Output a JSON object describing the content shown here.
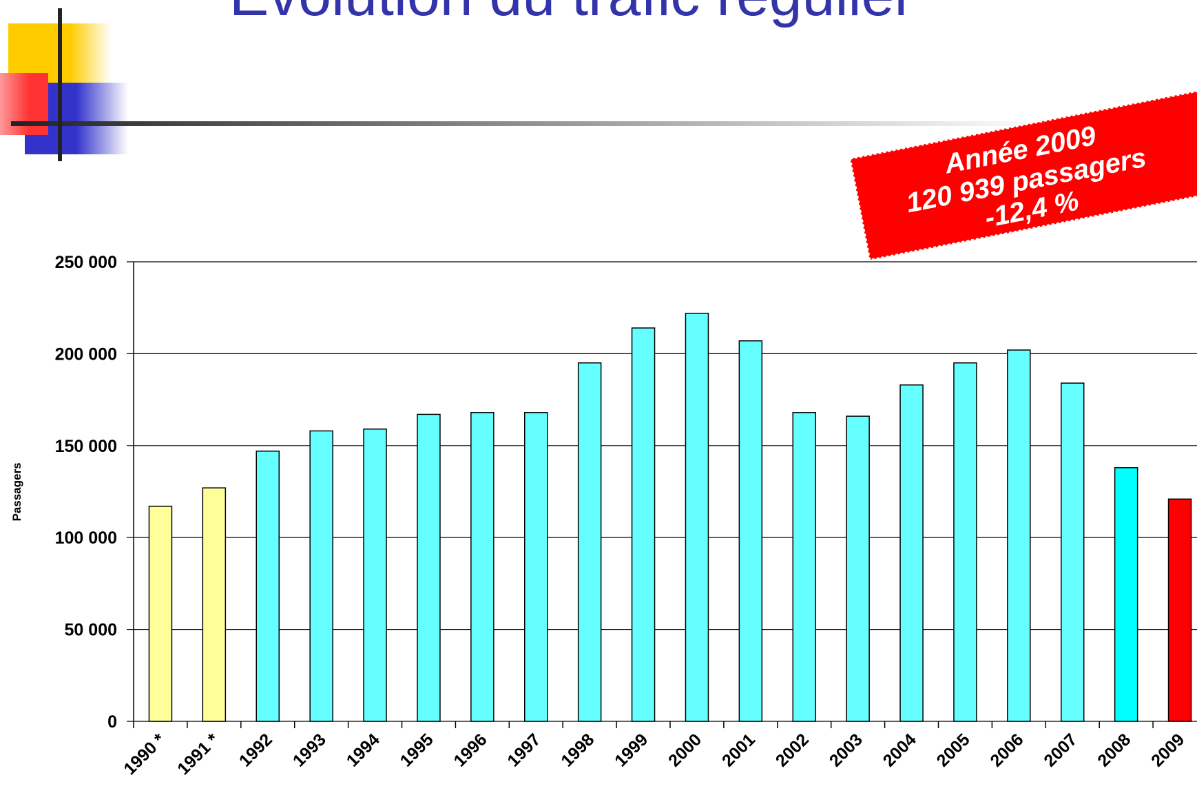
{
  "chart_data": {
    "type": "bar",
    "title": "Évolution du trafic régulier",
    "y_label": "Passagers",
    "annotation": [
      "Année 2009",
      "120 939 passagers",
      "-12,4 %"
    ],
    "categories": [
      "1990 *",
      "1991 *",
      "1992",
      "1993",
      "1994",
      "1995",
      "1996",
      "1997",
      "1998",
      "1999",
      "2000",
      "2001",
      "2002",
      "2003",
      "2004",
      "2005",
      "2006",
      "2007",
      "2008",
      "2009"
    ],
    "values": [
      117000,
      127000,
      147000,
      158000,
      159000,
      167000,
      168000,
      168000,
      195000,
      214000,
      222000,
      207000,
      168000,
      166000,
      183000,
      195000,
      202000,
      184000,
      138000,
      120939
    ],
    "colors": [
      "#ffff99",
      "#ffff99",
      "#66ffff",
      "#66ffff",
      "#66ffff",
      "#66ffff",
      "#66ffff",
      "#66ffff",
      "#66ffff",
      "#66ffff",
      "#66ffff",
      "#66ffff",
      "#66ffff",
      "#66ffff",
      "#66ffff",
      "#66ffff",
      "#66ffff",
      "#66ffff",
      "#00ffff",
      "#ff0000"
    ],
    "ylim": [
      0,
      250000
    ],
    "yticks": [
      {
        "value": 0,
        "label": "0"
      },
      {
        "value": 50000,
        "label": "50 000"
      },
      {
        "value": 100000,
        "label": "100 000"
      },
      {
        "value": 150000,
        "label": "150 000"
      },
      {
        "value": 200000,
        "label": "200 000"
      },
      {
        "value": 250000,
        "label": "250 000"
      }
    ],
    "grid": true
  }
}
